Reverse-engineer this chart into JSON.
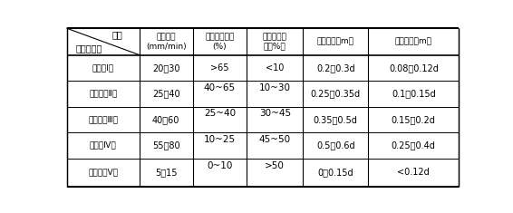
{
  "title_indicator": "指标",
  "title_property": "完整性系数",
  "col_headers": [
    "掘进速度\n(mm/min)",
    "片状岩渣含量\n(%)",
    "块状岩渣含\n量（%）",
    "岩渣长度（m）",
    "掘进宽度（m）"
  ],
  "row_labels": [
    "完整（Ⅰ）",
    "较完整（Ⅱ）",
    "较破牉（Ⅲ）",
    "破牉（Ⅳ）",
    "极破牉（Ⅴ）"
  ],
  "col1_vals": [
    "20～30",
    "25～40",
    "40～60",
    "55～80",
    "5～15"
  ],
  "col2_vals": [
    ">65",
    "40~65",
    "25~40",
    "10~25",
    "0~10"
  ],
  "col3_vals": [
    "<10",
    "10~30",
    "30~45",
    "45~50",
    ">50"
  ],
  "col4_vals": [
    "0.2～0.3d",
    "0.25～0.35d",
    "0.35～0.5d",
    "0.5～0.6d",
    "0～0.15d"
  ],
  "col5_vals": [
    "0.08～0.12d",
    "0.1～0.15d",
    "0.15～0.2d",
    "0.25～0.4d",
    "<0.12d"
  ],
  "bg_color": "#ffffff",
  "line_color": "#000000",
  "text_color": "#000000"
}
